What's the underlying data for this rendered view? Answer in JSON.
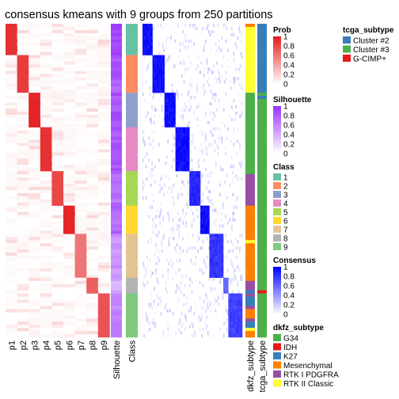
{
  "chart_data": {
    "type": "heatmap",
    "title": "consensus kmeans with 9 groups from 250 partitions",
    "n_samples": 100,
    "class_order": [
      1,
      2,
      3,
      4,
      5,
      6,
      7,
      8,
      9
    ],
    "membership_columns": [
      "p1",
      "p2",
      "p3",
      "p4",
      "p5",
      "p6",
      "p7",
      "p8",
      "p9"
    ],
    "annotation_columns": [
      "Silhouette",
      "Class"
    ],
    "right_annotation_columns": [
      "dkfz_subtype",
      "tcga_subtype"
    ],
    "class_sizes": [
      10,
      12,
      11,
      14,
      11,
      9,
      14,
      5,
      14
    ],
    "prob_values": [
      0.9,
      0.85,
      0.95,
      0.9,
      0.8,
      0.95,
      0.6,
      0.7,
      0.75
    ],
    "silhouette_values": [
      0.9,
      0.8,
      0.85,
      0.85,
      0.7,
      0.75,
      0.55,
      0.4,
      0.6
    ],
    "consensus_values": [
      0.95,
      0.95,
      0.95,
      0.95,
      0.85,
      0.95,
      0.8,
      0.6,
      0.75
    ],
    "dkfz_subtype_sequence": [
      3,
      5,
      5,
      5,
      5,
      5,
      5,
      5,
      5,
      5,
      5,
      5,
      5,
      5,
      5,
      5,
      5,
      5,
      5,
      5,
      5,
      5,
      0,
      0,
      0,
      0,
      0,
      0,
      0,
      0,
      0,
      0,
      0,
      0,
      0,
      0,
      0,
      0,
      0,
      0,
      0,
      0,
      0,
      0,
      0,
      0,
      0,
      0,
      4,
      4,
      4,
      4,
      4,
      4,
      4,
      4,
      4,
      4,
      3,
      3,
      3,
      3,
      3,
      3,
      3,
      3,
      3,
      3,
      3,
      5,
      3,
      3,
      3,
      3,
      3,
      3,
      3,
      3,
      3,
      3,
      3,
      3,
      4,
      4,
      4,
      2,
      4,
      2,
      2,
      2,
      4,
      3,
      3,
      3,
      4,
      2,
      2,
      5,
      3,
      3
    ],
    "tcga_subtype_sequence": [
      0,
      0,
      0,
      0,
      0,
      0,
      0,
      0,
      0,
      0,
      0,
      0,
      0,
      0,
      0,
      0,
      0,
      0,
      0,
      0,
      0,
      0,
      1,
      0,
      1,
      1,
      1,
      1,
      1,
      1,
      1,
      1,
      1,
      1,
      1,
      1,
      1,
      1,
      1,
      1,
      1,
      1,
      1,
      1,
      1,
      1,
      1,
      1,
      1,
      1,
      1,
      1,
      1,
      1,
      1,
      1,
      1,
      1,
      1,
      1,
      1,
      1,
      1,
      1,
      1,
      1,
      1,
      1,
      1,
      1,
      1,
      1,
      1,
      1,
      1,
      1,
      1,
      1,
      1,
      1,
      1,
      1,
      1,
      1,
      1,
      2,
      1,
      1,
      1,
      1,
      1,
      1,
      1,
      1,
      1,
      1,
      1,
      1,
      1,
      1
    ],
    "class_colors": [
      "#66C2A5",
      "#FC8D62",
      "#8DA0CB",
      "#E78AC3",
      "#A6D854",
      "#FFD92F",
      "#E5C494",
      "#B3B3B3",
      "#7FC97F"
    ],
    "prob_legend": {
      "title": "Prob",
      "ticks": [
        "1",
        "0.8",
        "0.6",
        "0.4",
        "0.2",
        "0"
      ],
      "low": "#ffffff",
      "high": "#e31a1c"
    },
    "silhouette_legend": {
      "title": "Silhouette",
      "ticks": [
        "1",
        "0.8",
        "0.6",
        "0.4",
        "0.2",
        "0"
      ],
      "low": "#ffffff",
      "high": "#9933ff"
    },
    "class_legend": {
      "title": "Class",
      "labels": [
        "1",
        "2",
        "3",
        "4",
        "5",
        "6",
        "7",
        "8",
        "9"
      ]
    },
    "consensus_legend": {
      "title": "Consensus",
      "ticks": [
        "1",
        "0.8",
        "0.6",
        "0.4",
        "0.2",
        "0"
      ],
      "low": "#ffffff",
      "high": "#0000ff"
    },
    "dkfz_legend": {
      "title": "dkfz_subtype",
      "labels": [
        "G34",
        "IDH",
        "K27",
        "Mesenchymal",
        "RTK I PDGFRA",
        "RTK II Classic"
      ],
      "colors": [
        "#4DAF4A",
        "#E41A1C",
        "#377EB8",
        "#FF7F00",
        "#984EA3",
        "#FFFF33"
      ]
    },
    "tcga_legend": {
      "title": "tcga_subtype",
      "labels": [
        "Cluster #2",
        "Cluster #3",
        "G-CIMP+"
      ],
      "colors": [
        "#377EB8",
        "#4DAF4A",
        "#E41A1C"
      ]
    }
  }
}
